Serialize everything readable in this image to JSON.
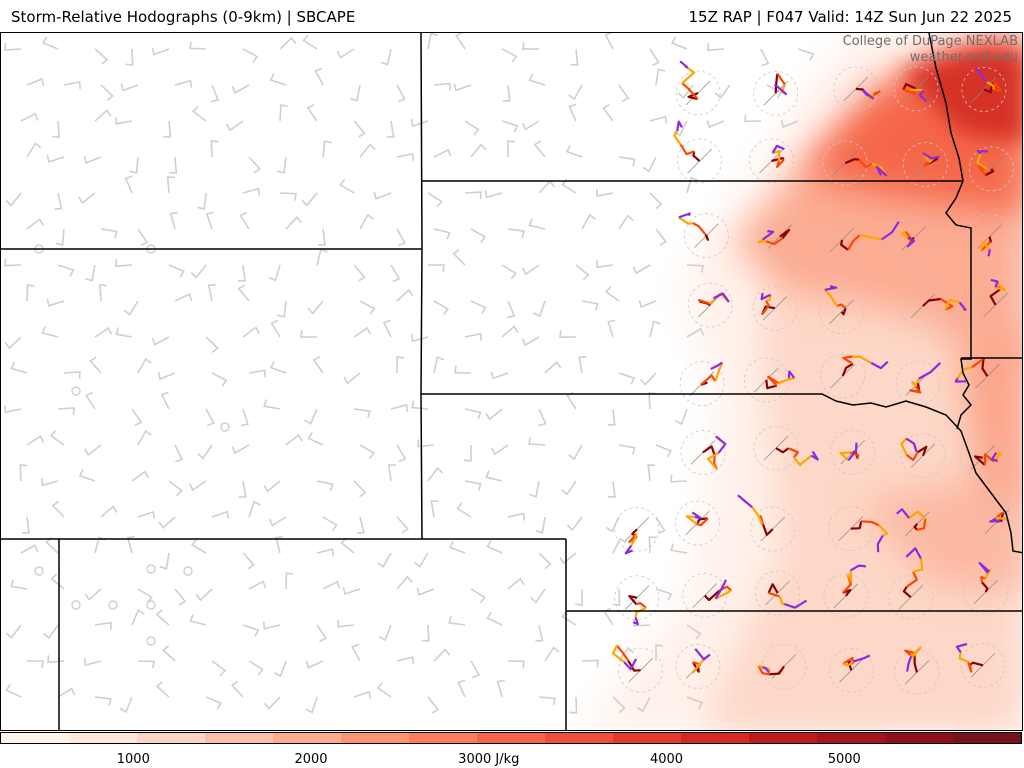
{
  "header": {
    "title": "Storm-Relative Hodographs (0-9km) | SBCAPE",
    "run_info": "15Z RAP | F047 Valid: 14Z Sun Jun 22 2025"
  },
  "credit": {
    "line1": "College of DuPage NEXLAB",
    "line2": "weather.cod.edu"
  },
  "colorbar": {
    "units": "J/kg",
    "ticks": [
      {
        "value": 1000,
        "label": "1000"
      },
      {
        "value": 2000,
        "label": "2000"
      },
      {
        "value": 3000,
        "label": "3000 J/kg"
      },
      {
        "value": 4000,
        "label": "4000"
      },
      {
        "value": 5000,
        "label": "5000"
      }
    ],
    "range": [
      250,
      6000
    ],
    "colors": [
      "#fff3ec",
      "#fee6da",
      "#fdd3c1",
      "#fcc0a8",
      "#fcab8f",
      "#fc9474",
      "#fb7c5c",
      "#f66546",
      "#ef4f38",
      "#e33a2c",
      "#d42a22",
      "#bf1d1d",
      "#a8141b",
      "#8f0f1a",
      "#761219"
    ]
  },
  "map": {
    "hodograph_colors": [
      "#8b0000",
      "#ff4500",
      "#ffa500",
      "#8a2be2"
    ]
  }
}
